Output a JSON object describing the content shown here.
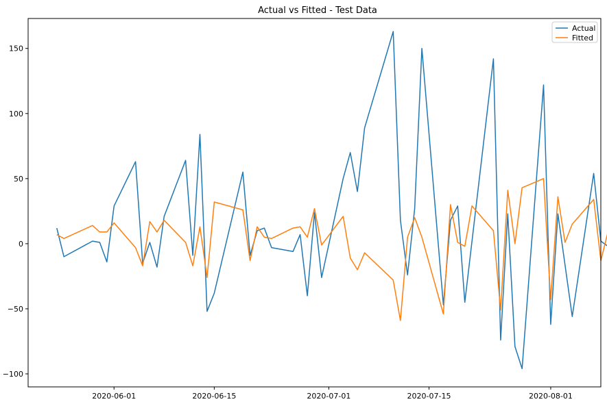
{
  "chart_data": {
    "type": "line",
    "title": "Actual vs Fitted - Test Data",
    "xlabel": "",
    "ylabel": "",
    "x_axis_type": "date",
    "x_ticks": [
      "2020-06-01",
      "2020-06-15",
      "2020-07-01",
      "2020-07-15",
      "2020-08-01"
    ],
    "y_ticks": [
      -100,
      -50,
      0,
      50,
      100,
      150
    ],
    "xlim": [
      "2020-05-20",
      "2020-08-08"
    ],
    "ylim": [
      -110,
      173
    ],
    "grid": false,
    "legend": "top-right",
    "series": [
      {
        "name": "Actual",
        "color": "#1f77b4",
        "points": [
          [
            "2020-05-24",
            12
          ],
          [
            "2020-05-25",
            -10
          ],
          [
            "2020-05-29",
            2
          ],
          [
            "2020-05-30",
            1
          ],
          [
            "2020-05-31",
            -14
          ],
          [
            "2020-06-01",
            29
          ],
          [
            "2020-06-04",
            63
          ],
          [
            "2020-06-05",
            -15
          ],
          [
            "2020-06-06",
            1
          ],
          [
            "2020-06-07",
            -18
          ],
          [
            "2020-06-08",
            21
          ],
          [
            "2020-06-11",
            64
          ],
          [
            "2020-06-12",
            -9
          ],
          [
            "2020-06-13",
            84
          ],
          [
            "2020-06-14",
            -52
          ],
          [
            "2020-06-15",
            -38
          ],
          [
            "2020-06-19",
            55
          ],
          [
            "2020-06-20",
            -9
          ],
          [
            "2020-06-21",
            10
          ],
          [
            "2020-06-22",
            12
          ],
          [
            "2020-06-23",
            -3
          ],
          [
            "2020-06-26",
            -6
          ],
          [
            "2020-06-27",
            7
          ],
          [
            "2020-06-28",
            -40
          ],
          [
            "2020-06-29",
            24
          ],
          [
            "2020-06-30",
            -26
          ],
          [
            "2020-07-03",
            50
          ],
          [
            "2020-07-04",
            70
          ],
          [
            "2020-07-05",
            40
          ],
          [
            "2020-07-06",
            89
          ],
          [
            "2020-07-10",
            163
          ],
          [
            "2020-07-11",
            18
          ],
          [
            "2020-07-12",
            -24
          ],
          [
            "2020-07-13",
            27
          ],
          [
            "2020-07-14",
            150
          ],
          [
            "2020-07-17",
            -47
          ],
          [
            "2020-07-18",
            18
          ],
          [
            "2020-07-19",
            29
          ],
          [
            "2020-07-20",
            -45
          ],
          [
            "2020-07-24",
            142
          ],
          [
            "2020-07-25",
            -74
          ],
          [
            "2020-07-26",
            23
          ],
          [
            "2020-07-27",
            -79
          ],
          [
            "2020-07-28",
            -96
          ],
          [
            "2020-07-31",
            122
          ],
          [
            "2020-08-01",
            -62
          ],
          [
            "2020-08-02",
            23
          ],
          [
            "2020-08-04",
            -56
          ],
          [
            "2020-08-07",
            54
          ],
          [
            "2020-08-08",
            2
          ],
          [
            "2020-08-09",
            -2
          ]
        ]
      },
      {
        "name": "Fitted",
        "color": "#ff7f0e",
        "points": [
          [
            "2020-05-24",
            7
          ],
          [
            "2020-05-25",
            4
          ],
          [
            "2020-05-29",
            14
          ],
          [
            "2020-05-30",
            9
          ],
          [
            "2020-05-31",
            9
          ],
          [
            "2020-06-01",
            16
          ],
          [
            "2020-06-04",
            -3
          ],
          [
            "2020-06-05",
            -17
          ],
          [
            "2020-06-06",
            17
          ],
          [
            "2020-06-07",
            9
          ],
          [
            "2020-06-08",
            18
          ],
          [
            "2020-06-11",
            1
          ],
          [
            "2020-06-12",
            -17
          ],
          [
            "2020-06-13",
            13
          ],
          [
            "2020-06-14",
            -26
          ],
          [
            "2020-06-15",
            32
          ],
          [
            "2020-06-19",
            26
          ],
          [
            "2020-06-20",
            -13
          ],
          [
            "2020-06-21",
            13
          ],
          [
            "2020-06-22",
            5
          ],
          [
            "2020-06-23",
            4
          ],
          [
            "2020-06-26",
            12
          ],
          [
            "2020-06-27",
            13
          ],
          [
            "2020-06-28",
            5
          ],
          [
            "2020-06-29",
            27
          ],
          [
            "2020-06-30",
            -1
          ],
          [
            "2020-07-03",
            21
          ],
          [
            "2020-07-04",
            -11
          ],
          [
            "2020-07-05",
            -20
          ],
          [
            "2020-07-06",
            -7
          ],
          [
            "2020-07-10",
            -28
          ],
          [
            "2020-07-11",
            -59
          ],
          [
            "2020-07-12",
            5
          ],
          [
            "2020-07-13",
            20
          ],
          [
            "2020-07-14",
            5
          ],
          [
            "2020-07-17",
            -54
          ],
          [
            "2020-07-18",
            30
          ],
          [
            "2020-07-19",
            1
          ],
          [
            "2020-07-20",
            -2
          ],
          [
            "2020-07-21",
            29
          ],
          [
            "2020-07-24",
            10
          ],
          [
            "2020-07-25",
            -51
          ],
          [
            "2020-07-26",
            41
          ],
          [
            "2020-07-27",
            0
          ],
          [
            "2020-07-28",
            43
          ],
          [
            "2020-07-31",
            50
          ],
          [
            "2020-08-01",
            -43
          ],
          [
            "2020-08-02",
            36
          ],
          [
            "2020-08-03",
            1
          ],
          [
            "2020-08-04",
            15
          ],
          [
            "2020-08-07",
            34
          ],
          [
            "2020-08-08",
            -13
          ],
          [
            "2020-08-09",
            9
          ]
        ]
      }
    ]
  }
}
